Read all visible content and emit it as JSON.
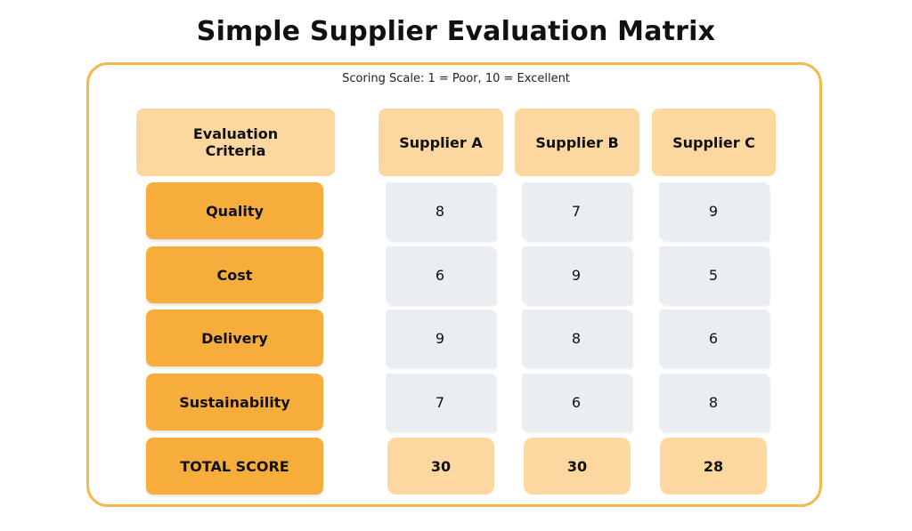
{
  "title": "Simple Supplier Evaluation Matrix",
  "scale_note": "Scoring Scale: 1 = Poor, 10 = Excellent",
  "header": {
    "criteria_label": "Evaluation\nCriteria",
    "suppliers": [
      "Supplier A",
      "Supplier B",
      "Supplier C"
    ]
  },
  "rows": [
    {
      "criterion": "Quality",
      "scores": [
        "8",
        "7",
        "9"
      ]
    },
    {
      "criterion": "Cost",
      "scores": [
        "6",
        "9",
        "5"
      ]
    },
    {
      "criterion": "Delivery",
      "scores": [
        "9",
        "8",
        "6"
      ]
    },
    {
      "criterion": "Sustainability",
      "scores": [
        "7",
        "6",
        "8"
      ]
    }
  ],
  "total": {
    "label": "TOTAL SCORE",
    "scores": [
      "30",
      "30",
      "28"
    ]
  },
  "colors": {
    "frame": "#f5b84a",
    "header_fill": "#fdd7a0",
    "criteria_fill": "#f7ad3b",
    "score_fill": "#eaedf1"
  }
}
